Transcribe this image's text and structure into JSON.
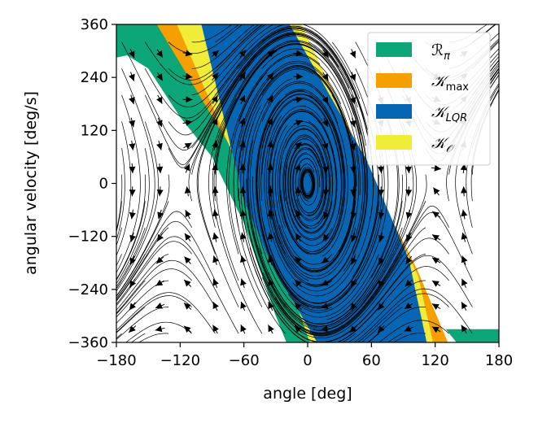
{
  "chart_data": {
    "type": "area",
    "title": "",
    "xlabel": "angle [deg]",
    "ylabel": "angular velocity [deg/s]",
    "xlim": [
      -180,
      180
    ],
    "ylim": [
      -360,
      360
    ],
    "xticks": [
      "−180",
      "−120",
      "−60",
      "0",
      "60",
      "120",
      "180"
    ],
    "yticks": [
      "360",
      "240",
      "120",
      "0",
      "−120",
      "−240",
      "−360"
    ],
    "grid": false,
    "legend_position": "top-right",
    "legend": [
      {
        "symbol": "R",
        "sub": "π",
        "color": "#0ca678"
      },
      {
        "symbol": "K",
        "sub": "max",
        "color": "#f59f00"
      },
      {
        "symbol": "K",
        "sub": "LQR",
        "color": "#0766b4"
      },
      {
        "symbol": "K",
        "sub": "O",
        "color": "#f1ec37"
      }
    ],
    "series": [
      {
        "color": "#0ca678",
        "region": {
          "upper": [
            [
              -180,
              360
            ],
            [
              -120,
              360
            ],
            [
              -60,
              120
            ],
            [
              0,
              -90
            ],
            [
              20,
              -180
            ],
            [
              60,
              -300
            ],
            [
              90,
              -360
            ],
            [
              180,
              -360
            ]
          ],
          "lower": [
            [
              -180,
              285
            ],
            [
              -170,
              290
            ],
            [
              -150,
              260
            ],
            [
              -120,
              150
            ],
            [
              -90,
              60
            ],
            [
              -60,
              -90
            ],
            [
              -30,
              -300
            ],
            [
              -20,
              -360
            ]
          ],
          "extra_top": [
            [
              -180,
              360
            ],
            [
              -140,
              360
            ],
            [
              -100,
              240
            ],
            [
              -130,
              330
            ],
            [
              -180,
              330
            ]
          ]
        }
      },
      {
        "color": "#f59f00",
        "region": {
          "left": [
            [
              -142,
              360
            ],
            [
              -123,
              360
            ],
            [
              -51,
              94
            ],
            [
              -5,
              -119
            ],
            [
              17,
              -246
            ],
            [
              25,
              -360
            ],
            [
              10,
              -360
            ],
            [
              -20,
              -170
            ],
            [
              -62,
              40
            ]
          ],
          "right": [
            [
              -23,
              360
            ],
            [
              -6,
              360
            ],
            [
              79,
              -80
            ],
            [
              103,
              -195
            ],
            [
              132,
              -360
            ],
            [
              112,
              -360
            ],
            [
              88,
              -215
            ],
            [
              60,
              -67
            ]
          ]
        }
      },
      {
        "color": "#0766b4",
        "region": {
          "band": [
            [
              -100,
              360
            ],
            [
              -17,
              360
            ],
            [
              56,
              50
            ],
            [
              95,
              -170
            ],
            [
              112,
              -360
            ],
            [
              9,
              -360
            ],
            [
              -35,
              -180
            ],
            [
              -60,
              -40
            ]
          ]
        }
      },
      {
        "color": "#f1ec37",
        "region": {
          "left": [
            [
              -123,
              360
            ],
            [
              -100,
              360
            ],
            [
              -60,
              -40
            ],
            [
              -35,
              -180
            ],
            [
              9,
              -360
            ],
            [
              2,
              -360
            ],
            [
              -20,
              -210
            ],
            [
              -62,
              20
            ]
          ],
          "right": [
            [
              -17,
              360
            ],
            [
              -6,
              360
            ],
            [
              70,
              -40
            ],
            [
              104,
              -210
            ],
            [
              118,
              -360
            ],
            [
              112,
              -360
            ],
            [
              95,
              -170
            ],
            [
              56,
              50
            ]
          ]
        }
      }
    ],
    "equilibria": [
      [
        -120,
        0
      ],
      [
        0,
        0
      ],
      [
        120,
        0
      ]
    ]
  }
}
